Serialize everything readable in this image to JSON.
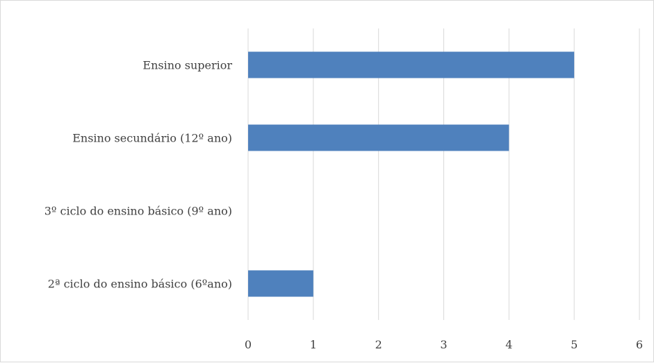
{
  "chart_data": {
    "type": "bar",
    "orientation": "horizontal",
    "categories": [
      "Ensino superior",
      "Ensino secundário (12º ano)",
      "3º ciclo do ensino básico (9º ano)",
      "2ª ciclo do ensino básico (6ºano)"
    ],
    "values": [
      5,
      4,
      0,
      1
    ],
    "xlim": [
      0,
      6
    ],
    "x_ticks": [
      0,
      1,
      2,
      3,
      4,
      5,
      6
    ],
    "grid": "vertical",
    "legend": "none",
    "bar_color": "#4f81bd",
    "grid_color": "#d9d9d9"
  }
}
